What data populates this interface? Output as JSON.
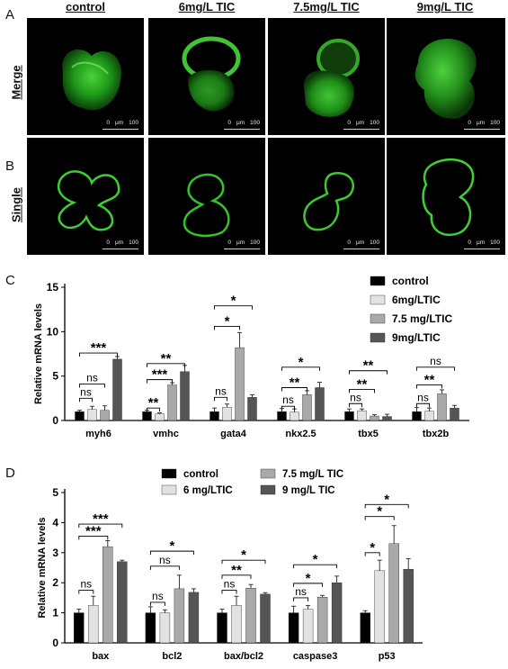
{
  "panel_a": {
    "letter": "A",
    "columns": [
      "control",
      "6mg/L TIC",
      "7.5mg/L TIC",
      "9mg/L TIC"
    ],
    "row_label": "Merge",
    "scale_text": [
      "0",
      "μm",
      "100"
    ]
  },
  "panel_b": {
    "letter": "B",
    "row_label": "Single",
    "scale_text": [
      "0",
      "μm",
      "100"
    ]
  },
  "panel_c": {
    "letter": "C"
  },
  "panel_d": {
    "letter": "D"
  },
  "chart_data": [
    {
      "type": "bar",
      "ylabel": "Relative mRNA levels",
      "xlabel": "",
      "ylim": [
        0,
        15
      ],
      "yticks": [
        0,
        5,
        10,
        15
      ],
      "categories": [
        "myh6",
        "vmhc",
        "gata4",
        "nkx2.5",
        "tbx5",
        "tbx2b"
      ],
      "series": [
        {
          "name": "control",
          "color": "#000000",
          "values": [
            1.0,
            1.0,
            1.0,
            1.0,
            1.0,
            1.0
          ],
          "errors": [
            0.15,
            0.15,
            0.4,
            0.35,
            0.3,
            0.45
          ]
        },
        {
          "name": "6mg/LTIC",
          "color": "#e2e2e2",
          "values": [
            1.25,
            0.75,
            1.5,
            0.95,
            1.1,
            1.05
          ],
          "errors": [
            0.35,
            0.1,
            0.35,
            0.35,
            0.2,
            0.35
          ]
        },
        {
          "name": "7.5 mg/LTIC",
          "color": "#a9a9a9",
          "values": [
            1.15,
            4.0,
            8.2,
            2.9,
            0.5,
            3.0
          ],
          "errors": [
            0.5,
            0.25,
            1.7,
            0.45,
            0.15,
            0.45
          ]
        },
        {
          "name": "9mg/LTIC",
          "color": "#555555",
          "values": [
            6.9,
            5.5,
            2.6,
            3.7,
            0.45,
            1.4
          ],
          "errors": [
            0.3,
            0.7,
            0.3,
            0.6,
            0.25,
            0.3
          ]
        }
      ],
      "legend_position": "top-right",
      "significance": [
        {
          "cat": 0,
          "s": 1,
          "label": "ns",
          "y": 2.5
        },
        {
          "cat": 0,
          "s": 2,
          "label": "ns",
          "y": 4.1
        },
        {
          "cat": 0,
          "s": 3,
          "label": "***",
          "y": 7.6
        },
        {
          "cat": 1,
          "s": 1,
          "label": "**",
          "y": 1.4
        },
        {
          "cat": 1,
          "s": 2,
          "label": "***",
          "y": 4.6
        },
        {
          "cat": 1,
          "s": 3,
          "label": "**",
          "y": 6.4
        },
        {
          "cat": 2,
          "s": 1,
          "label": "ns",
          "y": 2.6
        },
        {
          "cat": 2,
          "s": 2,
          "label": "*",
          "y": 10.6
        },
        {
          "cat": 2,
          "s": 3,
          "label": "*",
          "y": 12.9
        },
        {
          "cat": 3,
          "s": 1,
          "label": "ns",
          "y": 1.6
        },
        {
          "cat": 3,
          "s": 2,
          "label": "**",
          "y": 3.7
        },
        {
          "cat": 3,
          "s": 3,
          "label": "*",
          "y": 6.0
        },
        {
          "cat": 4,
          "s": 1,
          "label": "ns",
          "y": 1.9
        },
        {
          "cat": 4,
          "s": 2,
          "label": "**",
          "y": 3.5
        },
        {
          "cat": 4,
          "s": 3,
          "label": "**",
          "y": 5.6
        },
        {
          "cat": 5,
          "s": 1,
          "label": "ns",
          "y": 1.9
        },
        {
          "cat": 5,
          "s": 2,
          "label": "**",
          "y": 4.0
        },
        {
          "cat": 5,
          "s": 3,
          "label": "ns",
          "y": 6.0
        }
      ]
    },
    {
      "type": "bar",
      "ylabel": "Relative mRNA levels",
      "xlabel": "",
      "ylim": [
        0,
        5
      ],
      "yticks": [
        0,
        1,
        2,
        3,
        4,
        5
      ],
      "categories": [
        "bax",
        "bcl2",
        "bax/bcl2",
        "caspase3",
        "p53"
      ],
      "series": [
        {
          "name": "control",
          "color": "#000000",
          "values": [
            1.0,
            1.0,
            1.0,
            1.0,
            1.0
          ],
          "errors": [
            0.12,
            0.2,
            0.12,
            0.22,
            0.07
          ]
        },
        {
          "name": "6 mg/LTIC",
          "color": "#e2e2e2",
          "values": [
            1.25,
            1.0,
            1.25,
            1.12,
            2.4
          ],
          "errors": [
            0.3,
            0.1,
            0.3,
            0.12,
            0.35
          ]
        },
        {
          "name": "7.5 mg/L TIC",
          "color": "#a9a9a9",
          "values": [
            3.2,
            1.8,
            1.82,
            1.52,
            3.3
          ],
          "errors": [
            0.2,
            0.45,
            0.12,
            0.06,
            0.6
          ]
        },
        {
          "name": "9 mg/L TIC",
          "color": "#555555",
          "values": [
            2.7,
            1.68,
            1.62,
            2.0,
            2.45
          ],
          "errors": [
            0.05,
            0.12,
            0.05,
            0.22,
            0.35
          ]
        }
      ],
      "legend_position": "top",
      "significance": [
        {
          "cat": 0,
          "s": 1,
          "label": "ns",
          "y": 1.75
        },
        {
          "cat": 0,
          "s": 2,
          "label": "***",
          "y": 3.55
        },
        {
          "cat": 0,
          "s": 3,
          "label": "***",
          "y": 3.95
        },
        {
          "cat": 1,
          "s": 1,
          "label": "ns",
          "y": 1.35
        },
        {
          "cat": 1,
          "s": 2,
          "label": "ns",
          "y": 2.55
        },
        {
          "cat": 1,
          "s": 3,
          "label": "*",
          "y": 3.05
        },
        {
          "cat": 2,
          "s": 1,
          "label": "ns",
          "y": 1.75
        },
        {
          "cat": 2,
          "s": 2,
          "label": "**",
          "y": 2.25
        },
        {
          "cat": 2,
          "s": 3,
          "label": "*",
          "y": 2.75
        },
        {
          "cat": 3,
          "s": 1,
          "label": "ns",
          "y": 1.5
        },
        {
          "cat": 3,
          "s": 2,
          "label": "*",
          "y": 1.98
        },
        {
          "cat": 3,
          "s": 3,
          "label": "*",
          "y": 2.6
        },
        {
          "cat": 4,
          "s": 1,
          "label": "*",
          "y": 3.0
        },
        {
          "cat": 4,
          "s": 2,
          "label": "*",
          "y": 4.2
        },
        {
          "cat": 4,
          "s": 3,
          "label": "*",
          "y": 4.6
        }
      ]
    }
  ]
}
